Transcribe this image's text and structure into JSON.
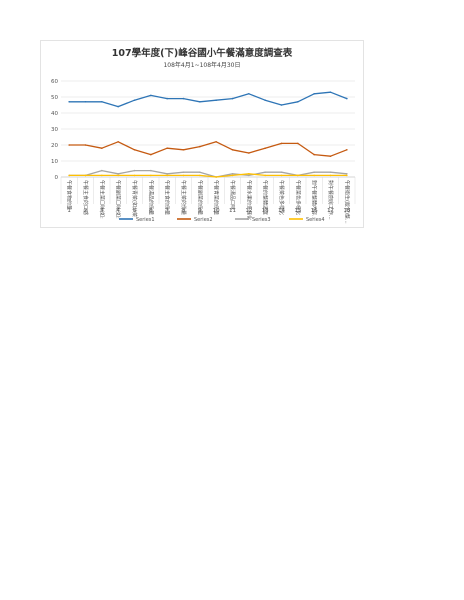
{
  "chart_data": {
    "type": "line",
    "title": "107學年度(下)峰谷國小午餐滿意度調查表",
    "subtitle": "108年4月1~108年4月30日",
    "ylim": [
      0,
      60
    ],
    "yticks": [
      0,
      10,
      20,
      30,
      40,
      50,
      60
    ],
    "grid": true,
    "legend_position": "bottom",
    "x": [
      "1",
      "2",
      "3",
      "4",
      "5",
      "6",
      "7",
      "8",
      "9",
      "10",
      "11",
      "12",
      "13",
      "14",
      "15",
      "16",
      "17",
      "18"
    ],
    "categories": [
      "午餐食物的量",
      "午餐主食的口感",
      "午餐主菜口味(如:",
      "午餐副菜口味(如:",
      "午餐青菜(如炒菜",
      "午餐湯品的份量",
      "午餐主食的份量",
      "午餐主菜的份量",
      "午餐副菜的份量",
      "午餐青菜的份量",
      "午餐湯品口味",
      "午餐水果的多樣化",
      "午餐的整體溫度",
      "午餐菜色多樣化",
      "午餐菜色多樣化",
      "對午餐整體內容...",
      "對午餐廚房工作...",
      "午餐衛生(飯包)整..."
    ],
    "series": [
      {
        "name": "Series1",
        "color": "#2e75b6",
        "values": [
          47,
          47,
          47,
          44,
          48,
          51,
          49,
          49,
          47,
          48,
          49,
          52,
          48,
          45,
          47,
          52,
          53,
          49
        ]
      },
      {
        "name": "Series2",
        "color": "#c55a11",
        "values": [
          20,
          20,
          18,
          22,
          17,
          14,
          18,
          17,
          19,
          22,
          17,
          15,
          18,
          21,
          21,
          14,
          13,
          17
        ]
      },
      {
        "name": "Series3",
        "color": "#a5a5a5",
        "values": [
          1,
          1,
          4,
          2,
          4,
          4,
          2,
          3,
          3,
          0,
          2,
          1,
          3,
          3,
          1,
          3,
          3,
          2
        ]
      },
      {
        "name": "Series4",
        "color": "#ffc000",
        "values": [
          1,
          1,
          1,
          1,
          1,
          1,
          1,
          1,
          1,
          0,
          1,
          2,
          1,
          1,
          1,
          1,
          1,
          1
        ]
      }
    ]
  }
}
